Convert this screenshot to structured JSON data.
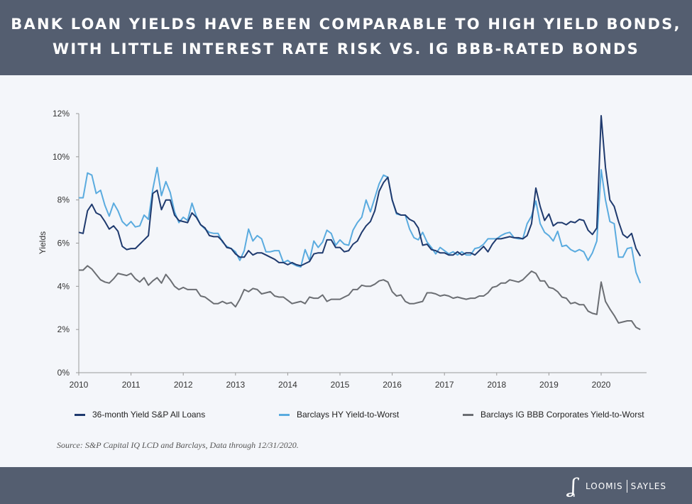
{
  "header": {
    "line1": "BANK LOAN YIELDS HAVE BEEN COMPARABLE TO HIGH YIELD BONDS,",
    "line2": "WITH LITTLE INTEREST RATE RISK VS. IG BBB-RATED BONDS"
  },
  "source": "Source: S&P Capital IQ LCD and Barclays, Data through 12/31/2020.",
  "logo": {
    "mark": "LS",
    "left": "LOOMIS",
    "right": "SAYLES"
  },
  "colors": {
    "header_bg": "#545e70",
    "loans": "#1f3a6e",
    "hy": "#5aabdf",
    "ig": "#6b6e73"
  },
  "chart_data": {
    "type": "line",
    "ylabel": "Yields",
    "xlabel": "",
    "ylim": [
      0,
      12
    ],
    "yticks": [
      "0%",
      "2%",
      "4%",
      "6%",
      "8%",
      "10%",
      "12%"
    ],
    "xticks": [
      "2010",
      "2011",
      "2012",
      "2013",
      "2014",
      "2015",
      "2016",
      "2017",
      "2018",
      "2019",
      "2020"
    ],
    "x_frequency": "monthly, starting 2010",
    "grid": false,
    "legend": "bottom",
    "series": [
      {
        "name": "36-month Yield S&P All Loans",
        "color": "#1f3a6e",
        "values": [
          6.5,
          6.45,
          7.5,
          7.8,
          7.4,
          7.3,
          7.0,
          6.65,
          6.8,
          6.55,
          5.85,
          5.7,
          5.75,
          5.75,
          5.95,
          6.15,
          6.35,
          8.3,
          8.45,
          7.55,
          8.0,
          8.0,
          7.3,
          7.05,
          7.0,
          6.95,
          7.4,
          7.2,
          6.85,
          6.7,
          6.35,
          6.3,
          6.3,
          6.1,
          5.8,
          5.75,
          5.5,
          5.35,
          5.35,
          5.65,
          5.45,
          5.55,
          5.55,
          5.45,
          5.35,
          5.25,
          5.1,
          5.1,
          5.0,
          5.1,
          5.0,
          4.95,
          5.05,
          5.15,
          5.5,
          5.55,
          5.55,
          6.15,
          6.15,
          5.8,
          5.8,
          5.6,
          5.65,
          5.95,
          6.1,
          6.5,
          6.8,
          7.0,
          7.5,
          8.4,
          8.8,
          9.05,
          8.0,
          7.4,
          7.3,
          7.3,
          7.1,
          7.0,
          6.7,
          5.9,
          5.95,
          5.7,
          5.65,
          5.55,
          5.55,
          5.45,
          5.45,
          5.6,
          5.45,
          5.55,
          5.55,
          5.45,
          5.65,
          5.85,
          5.6,
          5.95,
          6.2,
          6.2,
          6.25,
          6.3,
          6.25,
          6.25,
          6.2,
          6.35,
          6.9,
          8.55,
          7.7,
          7.05,
          7.35,
          6.8,
          6.95,
          6.95,
          6.85,
          7.0,
          6.95,
          7.1,
          7.05,
          6.6,
          6.4,
          6.7,
          11.9,
          9.5,
          8.0,
          7.7,
          7.0,
          6.4,
          6.25,
          6.45,
          5.75,
          5.4
        ]
      },
      {
        "name": "Barclays HY Yield-to-Worst",
        "color": "#5aabdf",
        "values": [
          8.1,
          8.1,
          9.25,
          9.15,
          8.3,
          8.45,
          7.75,
          7.25,
          7.85,
          7.5,
          7.0,
          6.8,
          7.0,
          6.75,
          6.8,
          7.3,
          7.1,
          8.5,
          9.5,
          8.2,
          8.85,
          8.35,
          7.45,
          6.95,
          7.2,
          7.05,
          7.85,
          7.25,
          6.85,
          6.65,
          6.5,
          6.45,
          6.45,
          6.05,
          5.85,
          5.75,
          5.6,
          5.2,
          5.65,
          6.65,
          6.1,
          6.35,
          6.2,
          5.6,
          5.6,
          5.65,
          5.65,
          5.1,
          5.2,
          5.05,
          4.95,
          4.9,
          5.7,
          5.2,
          6.1,
          5.8,
          6.05,
          6.6,
          6.45,
          5.9,
          6.15,
          5.95,
          5.9,
          6.6,
          6.95,
          7.2,
          8.0,
          7.45,
          8.1,
          8.75,
          9.15,
          9.05,
          8.0,
          7.35,
          7.3,
          7.3,
          6.65,
          6.25,
          6.15,
          6.5,
          6.05,
          5.8,
          5.5,
          5.8,
          5.65,
          5.5,
          5.6,
          5.45,
          5.6,
          5.45,
          5.45,
          5.75,
          5.8,
          5.95,
          6.2,
          6.2,
          6.2,
          6.35,
          6.45,
          6.5,
          6.25,
          6.2,
          6.2,
          6.9,
          7.25,
          7.95,
          6.9,
          6.5,
          6.35,
          6.1,
          6.55,
          5.85,
          5.9,
          5.7,
          5.6,
          5.7,
          5.6,
          5.2,
          5.55,
          6.1,
          9.4,
          8.0,
          7.0,
          6.9,
          5.35,
          5.35,
          5.75,
          5.8,
          4.65,
          4.15
        ]
      },
      {
        "name": "Barclays IG BBB Corporates Yield-to-Worst",
        "color": "#6b6e73",
        "values": [
          4.75,
          4.75,
          4.95,
          4.8,
          4.55,
          4.3,
          4.2,
          4.15,
          4.35,
          4.6,
          4.55,
          4.5,
          4.6,
          4.35,
          4.2,
          4.4,
          4.05,
          4.25,
          4.4,
          4.15,
          4.55,
          4.3,
          4.0,
          3.85,
          3.95,
          3.85,
          3.85,
          3.85,
          3.55,
          3.5,
          3.35,
          3.2,
          3.2,
          3.3,
          3.2,
          3.25,
          3.05,
          3.4,
          3.85,
          3.75,
          3.9,
          3.85,
          3.65,
          3.7,
          3.75,
          3.55,
          3.5,
          3.5,
          3.35,
          3.2,
          3.25,
          3.3,
          3.2,
          3.5,
          3.45,
          3.45,
          3.6,
          3.3,
          3.4,
          3.4,
          3.4,
          3.5,
          3.6,
          3.85,
          3.85,
          4.05,
          4.0,
          4.0,
          4.1,
          4.25,
          4.3,
          4.2,
          3.75,
          3.55,
          3.6,
          3.3,
          3.2,
          3.2,
          3.25,
          3.3,
          3.7,
          3.7,
          3.65,
          3.55,
          3.6,
          3.55,
          3.45,
          3.5,
          3.45,
          3.4,
          3.45,
          3.45,
          3.55,
          3.55,
          3.7,
          3.95,
          4.0,
          4.15,
          4.15,
          4.3,
          4.25,
          4.2,
          4.3,
          4.5,
          4.7,
          4.6,
          4.25,
          4.25,
          3.95,
          3.9,
          3.75,
          3.5,
          3.45,
          3.2,
          3.25,
          3.15,
          3.15,
          2.85,
          2.75,
          2.7,
          4.2,
          3.3,
          2.95,
          2.65,
          2.3,
          2.35,
          2.4,
          2.4,
          2.1,
          2.0
        ]
      }
    ]
  }
}
